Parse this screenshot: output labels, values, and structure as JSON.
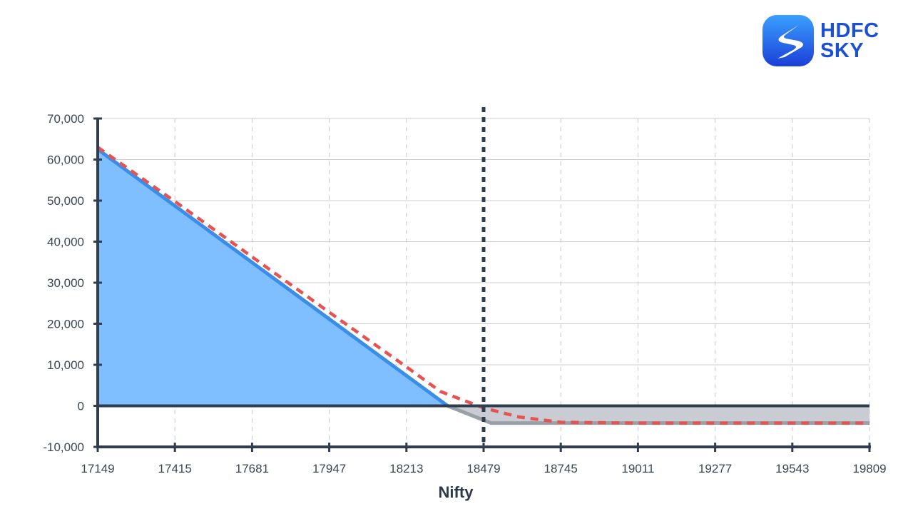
{
  "logo": {
    "line1": "HDFC",
    "line2": "SKY",
    "icon": "hdfc-sky-s-icon",
    "colors": {
      "mark_top": "#3aa0ff",
      "mark_bottom": "#1b3fd8",
      "text": "#1a4fd6"
    }
  },
  "chart_data": {
    "type": "area",
    "title": "",
    "xlabel": "Nifty",
    "ylabel": "",
    "x_ticks": [
      17149,
      17415,
      17681,
      17947,
      18213,
      18479,
      18745,
      19011,
      19277,
      19543,
      19809
    ],
    "y_ticks": [
      -10000,
      0,
      10000,
      20000,
      30000,
      40000,
      50000,
      60000,
      70000
    ],
    "y_tick_labels": [
      "-10,000",
      "0",
      "10,000",
      "20,000",
      "30,000",
      "40,000",
      "50,000",
      "60,000",
      "70,000"
    ],
    "xlim": [
      17149,
      19809
    ],
    "ylim": [
      -10000,
      70000
    ],
    "grid": {
      "horizontal": "solid",
      "vertical": "dashed"
    },
    "reference_line": {
      "x": 18479,
      "style": "dotted",
      "color": "#2f3d4f"
    },
    "series": [
      {
        "style": "solid",
        "color": "#3a8ee8",
        "fill_positive": "#7fbfff",
        "fill_negative": "#c9cdd3",
        "negative_line_color": "#9aa0a8",
        "points": [
          [
            17149,
            62500
          ],
          [
            18355,
            0
          ],
          [
            18505,
            -4200
          ],
          [
            19809,
            -4200
          ]
        ]
      },
      {
        "style": "dashed",
        "color": "#e55353",
        "points": [
          [
            17149,
            63000
          ],
          [
            17415,
            49800
          ],
          [
            17681,
            36300
          ],
          [
            17947,
            22800
          ],
          [
            18213,
            9500
          ],
          [
            18330,
            3500
          ],
          [
            18479,
            -500
          ],
          [
            18600,
            -2700
          ],
          [
            18745,
            -4000
          ],
          [
            19011,
            -4200
          ],
          [
            19809,
            -4200
          ]
        ]
      }
    ]
  }
}
